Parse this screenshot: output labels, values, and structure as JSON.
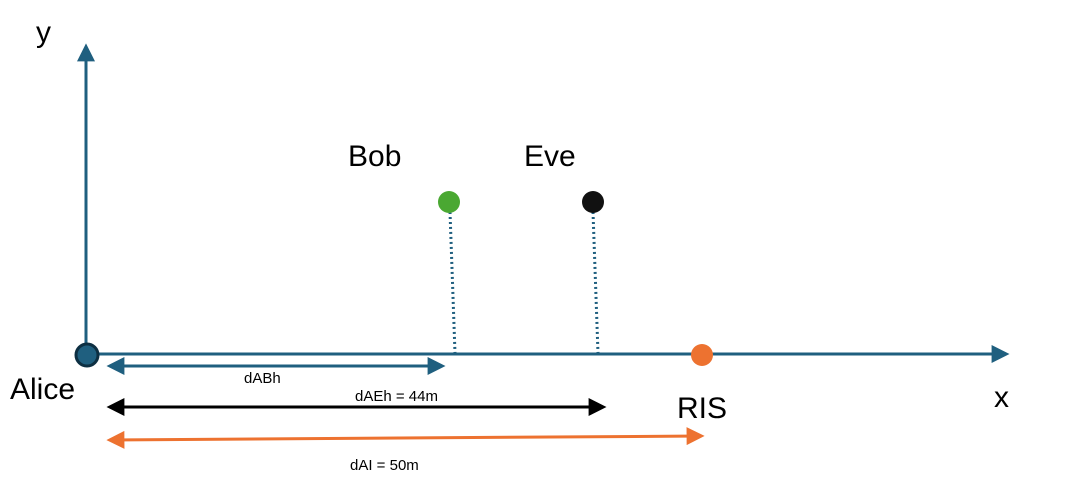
{
  "axes": {
    "x_label": "x",
    "y_label": "y",
    "color": "#1f5f7f"
  },
  "nodes": {
    "alice": {
      "label": "Alice",
      "color": "#1f5f7f"
    },
    "bob": {
      "label": "Bob",
      "color": "#4aa832"
    },
    "eve": {
      "label": "Eve",
      "color": "#000000"
    },
    "ris": {
      "label": "RIS",
      "color": "#ed7230"
    }
  },
  "distances": {
    "d_ab": {
      "label": "dABh",
      "color": "#1f5f7f"
    },
    "d_ae": {
      "label": "dAEh = 44m",
      "color": "#000000"
    },
    "d_ai": {
      "label": "dAI = 50m",
      "color": "#ed7230"
    }
  }
}
